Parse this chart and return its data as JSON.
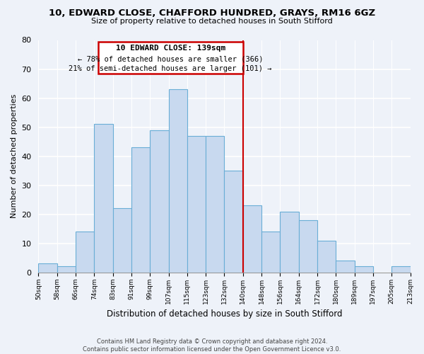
{
  "title_line1": "10, EDWARD CLOSE, CHAFFORD HUNDRED, GRAYS, RM16 6GZ",
  "title_line2": "Size of property relative to detached houses in South Stifford",
  "xlabel": "Distribution of detached houses by size in South Stifford",
  "ylabel": "Number of detached properties",
  "footer_line1": "Contains HM Land Registry data © Crown copyright and database right 2024.",
  "footer_line2": "Contains public sector information licensed under the Open Government Licence v3.0.",
  "bin_labels": [
    "50sqm",
    "58sqm",
    "66sqm",
    "74sqm",
    "83sqm",
    "91sqm",
    "99sqm",
    "107sqm",
    "115sqm",
    "123sqm",
    "132sqm",
    "140sqm",
    "148sqm",
    "156sqm",
    "164sqm",
    "172sqm",
    "180sqm",
    "189sqm",
    "197sqm",
    "205sqm",
    "213sqm"
  ],
  "bar_heights": [
    3,
    2,
    14,
    51,
    22,
    43,
    49,
    63,
    47,
    47,
    35,
    23,
    14,
    21,
    18,
    11,
    4,
    2,
    0,
    2
  ],
  "bar_color": "#c8d9ef",
  "bar_edge_color": "#6aaed6",
  "reference_line_color": "#cc0000",
  "annotation_title": "10 EDWARD CLOSE: 139sqm",
  "annotation_line1": "← 78% of detached houses are smaller (366)",
  "annotation_line2": "21% of semi-detached houses are larger (101) →",
  "ylim": [
    0,
    80
  ],
  "yticks": [
    0,
    10,
    20,
    30,
    40,
    50,
    60,
    70,
    80
  ],
  "background_color": "#eef2f9"
}
